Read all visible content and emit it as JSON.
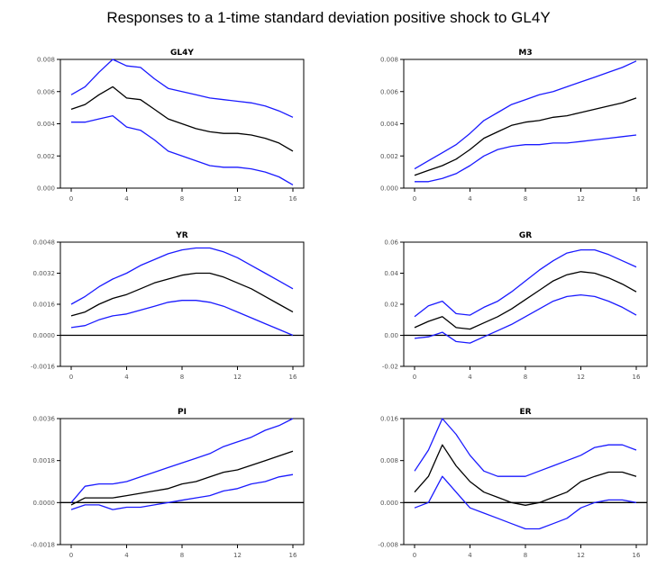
{
  "title": "Responses to a 1-time standard deviation positive shock to GL4Y",
  "colors": {
    "response": "#000000",
    "bands": "#1a1aff",
    "zero_line": "#000000"
  },
  "chart_data": [
    {
      "type": "line",
      "title": "GL4Y",
      "x": [
        0,
        1,
        2,
        3,
        4,
        5,
        6,
        7,
        8,
        9,
        10,
        11,
        12,
        13,
        14,
        15,
        16
      ],
      "xticks": [
        "0",
        "4",
        "8",
        "12",
        "16"
      ],
      "xtick_values": [
        0,
        4,
        8,
        12,
        16
      ],
      "ylim": [
        0.0,
        0.008
      ],
      "yticks": [
        "0.000",
        "0.002",
        "0.004",
        "0.006",
        "0.008"
      ],
      "ytick_values": [
        0.0,
        0.002,
        0.004,
        0.006,
        0.008
      ],
      "zero_line": false,
      "series": [
        {
          "role": "upper",
          "values": [
            0.0058,
            0.0063,
            0.0072,
            0.008,
            0.0076,
            0.0075,
            0.0068,
            0.0062,
            0.006,
            0.0058,
            0.0056,
            0.0055,
            0.0054,
            0.0053,
            0.0051,
            0.0048,
            0.0044
          ]
        },
        {
          "role": "response",
          "values": [
            0.0049,
            0.0052,
            0.0058,
            0.0063,
            0.0056,
            0.0055,
            0.0049,
            0.0043,
            0.004,
            0.0037,
            0.0035,
            0.0034,
            0.0034,
            0.0033,
            0.0031,
            0.0028,
            0.0023
          ]
        },
        {
          "role": "lower",
          "values": [
            0.0041,
            0.0041,
            0.0043,
            0.0045,
            0.0038,
            0.0036,
            0.003,
            0.0023,
            0.002,
            0.0017,
            0.0014,
            0.0013,
            0.0013,
            0.0012,
            0.001,
            0.0007,
            0.0002
          ]
        }
      ]
    },
    {
      "type": "line",
      "title": "M3",
      "x": [
        0,
        1,
        2,
        3,
        4,
        5,
        6,
        7,
        8,
        9,
        10,
        11,
        12,
        13,
        14,
        15,
        16
      ],
      "xticks": [
        "0",
        "4",
        "8",
        "12",
        "16"
      ],
      "xtick_values": [
        0,
        4,
        8,
        12,
        16
      ],
      "ylim": [
        0.0,
        0.008
      ],
      "yticks": [
        "0.000",
        "0.002",
        "0.004",
        "0.006",
        "0.008"
      ],
      "ytick_values": [
        0.0,
        0.002,
        0.004,
        0.006,
        0.008
      ],
      "zero_line": false,
      "series": [
        {
          "role": "upper",
          "values": [
            0.0012,
            0.0017,
            0.0022,
            0.0027,
            0.0034,
            0.0042,
            0.0047,
            0.0052,
            0.0055,
            0.0058,
            0.006,
            0.0063,
            0.0066,
            0.0069,
            0.0072,
            0.0075,
            0.0079
          ]
        },
        {
          "role": "response",
          "values": [
            0.0008,
            0.0011,
            0.0014,
            0.0018,
            0.0024,
            0.0031,
            0.0035,
            0.0039,
            0.0041,
            0.0042,
            0.0044,
            0.0045,
            0.0047,
            0.0049,
            0.0051,
            0.0053,
            0.0056
          ]
        },
        {
          "role": "lower",
          "values": [
            0.0004,
            0.0004,
            0.0006,
            0.0009,
            0.0014,
            0.002,
            0.0024,
            0.0026,
            0.0027,
            0.0027,
            0.0028,
            0.0028,
            0.0029,
            0.003,
            0.0031,
            0.0032,
            0.0033
          ]
        }
      ]
    },
    {
      "type": "line",
      "title": "YR",
      "x": [
        0,
        1,
        2,
        3,
        4,
        5,
        6,
        7,
        8,
        9,
        10,
        11,
        12,
        13,
        14,
        15,
        16
      ],
      "xticks": [
        "0",
        "4",
        "8",
        "12",
        "16"
      ],
      "xtick_values": [
        0,
        4,
        8,
        12,
        16
      ],
      "ylim": [
        -0.0016,
        0.0048
      ],
      "yticks": [
        "-0.0016",
        "0.0000",
        "0.0016",
        "0.0032",
        "0.0048"
      ],
      "ytick_values": [
        -0.0016,
        0.0,
        0.0016,
        0.0032,
        0.0048
      ],
      "zero_line": true,
      "series": [
        {
          "role": "upper",
          "values": [
            0.0016,
            0.002,
            0.0025,
            0.0029,
            0.0032,
            0.0036,
            0.0039,
            0.0042,
            0.0044,
            0.0045,
            0.0045,
            0.0043,
            0.004,
            0.0036,
            0.0032,
            0.0028,
            0.0024
          ]
        },
        {
          "role": "response",
          "values": [
            0.001,
            0.0012,
            0.0016,
            0.0019,
            0.0021,
            0.0024,
            0.0027,
            0.0029,
            0.0031,
            0.0032,
            0.0032,
            0.003,
            0.0027,
            0.0024,
            0.002,
            0.0016,
            0.0012
          ]
        },
        {
          "role": "lower",
          "values": [
            0.0004,
            0.0005,
            0.0008,
            0.001,
            0.0011,
            0.0013,
            0.0015,
            0.0017,
            0.0018,
            0.0018,
            0.0017,
            0.0015,
            0.0012,
            0.0009,
            0.0006,
            0.0003,
            0.0
          ]
        }
      ]
    },
    {
      "type": "line",
      "title": "GR",
      "x": [
        0,
        1,
        2,
        3,
        4,
        5,
        6,
        7,
        8,
        9,
        10,
        11,
        12,
        13,
        14,
        15,
        16
      ],
      "xticks": [
        "0",
        "4",
        "8",
        "12",
        "16"
      ],
      "xtick_values": [
        0,
        4,
        8,
        12,
        16
      ],
      "ylim": [
        -0.02,
        0.06
      ],
      "yticks": [
        "-0.02",
        "0.00",
        "0.02",
        "0.04",
        "0.06"
      ],
      "ytick_values": [
        -0.02,
        0.0,
        0.02,
        0.04,
        0.06
      ],
      "zero_line": true,
      "series": [
        {
          "role": "upper",
          "values": [
            0.012,
            0.019,
            0.022,
            0.014,
            0.013,
            0.018,
            0.022,
            0.028,
            0.035,
            0.042,
            0.048,
            0.053,
            0.055,
            0.055,
            0.052,
            0.048,
            0.044
          ]
        },
        {
          "role": "response",
          "values": [
            0.005,
            0.009,
            0.012,
            0.005,
            0.004,
            0.008,
            0.012,
            0.017,
            0.023,
            0.029,
            0.035,
            0.039,
            0.041,
            0.04,
            0.037,
            0.033,
            0.028
          ]
        },
        {
          "role": "lower",
          "values": [
            -0.002,
            -0.001,
            0.002,
            -0.004,
            -0.005,
            -0.001,
            0.003,
            0.007,
            0.012,
            0.017,
            0.022,
            0.025,
            0.026,
            0.025,
            0.022,
            0.018,
            0.013
          ]
        }
      ]
    },
    {
      "type": "line",
      "title": "PI",
      "x": [
        0,
        1,
        2,
        3,
        4,
        5,
        6,
        7,
        8,
        9,
        10,
        11,
        12,
        13,
        14,
        15,
        16
      ],
      "xticks": [
        "0",
        "4",
        "8",
        "12",
        "16"
      ],
      "xtick_values": [
        0,
        4,
        8,
        12,
        16
      ],
      "ylim": [
        -0.0018,
        0.0036
      ],
      "yticks": [
        "-0.0018",
        "0.0000",
        "0.0018",
        "0.0036"
      ],
      "ytick_values": [
        -0.0018,
        0.0,
        0.0018,
        0.0036
      ],
      "zero_line": true,
      "series": [
        {
          "role": "upper",
          "values": [
            0.0,
            0.0007,
            0.0008,
            0.0008,
            0.0009,
            0.0011,
            0.0013,
            0.0015,
            0.0017,
            0.0019,
            0.0021,
            0.0024,
            0.0026,
            0.0028,
            0.0031,
            0.0033,
            0.0036
          ]
        },
        {
          "role": "response",
          "values": [
            -0.0001,
            0.0002,
            0.0002,
            0.0002,
            0.0003,
            0.0004,
            0.0005,
            0.0006,
            0.0008,
            0.0009,
            0.0011,
            0.0013,
            0.0014,
            0.0016,
            0.0018,
            0.002,
            0.0022
          ]
        },
        {
          "role": "lower",
          "values": [
            -0.0003,
            -0.0001,
            -0.0001,
            -0.0003,
            -0.0002,
            -0.0002,
            -0.0001,
            0.0,
            0.0001,
            0.0002,
            0.0003,
            0.0005,
            0.0006,
            0.0008,
            0.0009,
            0.0011,
            0.0012
          ]
        }
      ]
    },
    {
      "type": "line",
      "title": "ER",
      "x": [
        0,
        1,
        2,
        3,
        4,
        5,
        6,
        7,
        8,
        9,
        10,
        11,
        12,
        13,
        14,
        15,
        16
      ],
      "xticks": [
        "0",
        "4",
        "8",
        "12",
        "16"
      ],
      "xtick_values": [
        0,
        4,
        8,
        12,
        16
      ],
      "ylim": [
        -0.008,
        0.016
      ],
      "yticks": [
        "-0.008",
        "0.000",
        "0.008",
        "0.016"
      ],
      "ytick_values": [
        -0.008,
        0.0,
        0.008,
        0.016
      ],
      "zero_line": true,
      "series": [
        {
          "role": "upper",
          "values": [
            0.006,
            0.01,
            0.016,
            0.013,
            0.009,
            0.006,
            0.005,
            0.005,
            0.005,
            0.006,
            0.007,
            0.008,
            0.009,
            0.0105,
            0.011,
            0.011,
            0.01
          ]
        },
        {
          "role": "response",
          "values": [
            0.002,
            0.005,
            0.011,
            0.007,
            0.004,
            0.002,
            0.001,
            0.0,
            -0.0005,
            0.0,
            0.001,
            0.002,
            0.004,
            0.005,
            0.0058,
            0.0058,
            0.005
          ]
        },
        {
          "role": "lower",
          "values": [
            -0.001,
            0.0,
            0.005,
            0.002,
            -0.001,
            -0.002,
            -0.003,
            -0.004,
            -0.005,
            -0.005,
            -0.004,
            -0.003,
            -0.001,
            0.0,
            0.0005,
            0.0005,
            0.0
          ]
        }
      ]
    }
  ]
}
